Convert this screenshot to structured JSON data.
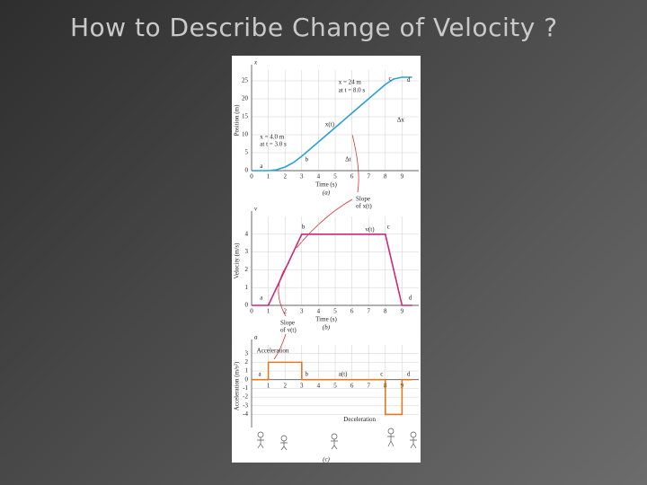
{
  "title": "How to Describe Change of Velocity ?",
  "slope_labels": [
    [
      "Slope",
      "of x(t)"
    ],
    [
      "Slope",
      "of v(t)"
    ]
  ],
  "chart_data": [
    {
      "type": "line",
      "axis_symbol": "x",
      "ylabel": "Position (m)",
      "xlabel": "Time (s)",
      "caption": "(a)",
      "x": [
        0,
        1,
        1.5,
        2,
        2.5,
        3,
        4,
        5,
        6,
        7,
        8,
        8.5,
        9,
        9.6
      ],
      "values": [
        0,
        0,
        0.25,
        1,
        2.25,
        4,
        8,
        12,
        16,
        20,
        24,
        25.5,
        26,
        26
      ],
      "color": "#2a9fd6",
      "xlim": [
        0,
        10
      ],
      "ylim": [
        0,
        28
      ],
      "xticks": [
        0,
        1,
        2,
        3,
        4,
        5,
        6,
        7,
        8,
        9
      ],
      "yticks": [
        0,
        5,
        10,
        15,
        20,
        25
      ],
      "grid": true,
      "annotations": [
        {
          "text": "x = 24 m",
          "x": 5.2,
          "y": 24.5
        },
        {
          "text": "at t = 8.0 s",
          "x": 5.2,
          "y": 22.3
        },
        {
          "text": "x(t)",
          "x": 4.4,
          "y": 12.8
        },
        {
          "text": "x = 4.0 m",
          "x": 0.5,
          "y": 9.3
        },
        {
          "text": "at t = 3.0 s",
          "x": 0.5,
          "y": 7.3
        },
        {
          "text": "Δx",
          "x": 8.7,
          "y": 14
        },
        {
          "text": "Δt",
          "x": 5.6,
          "y": 3
        },
        {
          "text": "a",
          "x": 0.5,
          "y": 1.2
        },
        {
          "text": "b",
          "x": 3.2,
          "y": 3
        },
        {
          "text": "c",
          "x": 8.2,
          "y": 25.5
        },
        {
          "text": "d",
          "x": 9.3,
          "y": 25.2
        }
      ]
    },
    {
      "type": "line",
      "axis_symbol": "v",
      "ylabel": "Velocity (m/s)",
      "xlabel": "Time (s)",
      "caption": "(b)",
      "x": [
        0,
        1,
        3,
        8,
        9,
        9.6
      ],
      "values": [
        0,
        0,
        4,
        4,
        0,
        0
      ],
      "color": "#c8287e",
      "xlim": [
        0,
        10
      ],
      "ylim": [
        0,
        5
      ],
      "xticks": [
        0,
        1,
        2,
        3,
        4,
        5,
        6,
        7,
        8,
        9
      ],
      "yticks": [
        0,
        1,
        2,
        3,
        4
      ],
      "grid": true,
      "annotations": [
        {
          "text": "a",
          "x": 0.5,
          "y": 0.4
        },
        {
          "text": "b",
          "x": 3,
          "y": 4.4
        },
        {
          "text": "c",
          "x": 8.1,
          "y": 4.4
        },
        {
          "text": "d",
          "x": 9.4,
          "y": 0.4
        },
        {
          "text": "v(t)",
          "x": 6.8,
          "y": 4.25
        }
      ]
    },
    {
      "type": "line",
      "axis_symbol": "a",
      "ylabel": "Acceleration (m/s²)",
      "caption": "(c)",
      "x": [
        0,
        1,
        1,
        3,
        3,
        8,
        8,
        9,
        9,
        9.6
      ],
      "values": [
        0,
        0,
        2,
        2,
        0,
        0,
        -4,
        -4,
        0,
        0
      ],
      "color": "#e07a20",
      "xlim": [
        0,
        10
      ],
      "ylim": [
        -5.5,
        4
      ],
      "xticks": [
        1,
        2,
        3,
        4,
        5,
        6,
        7,
        8,
        9
      ],
      "yticks": [
        -4,
        -3,
        -2,
        -1,
        0,
        1,
        2,
        3
      ],
      "grid": true,
      "annotations": [
        {
          "text": "a",
          "x": 0.4,
          "y": 0.6
        },
        {
          "text": "b",
          "x": 3.2,
          "y": 0.6
        },
        {
          "text": "c",
          "x": 7.7,
          "y": 0.6
        },
        {
          "text": "d",
          "x": 9.3,
          "y": 0.6
        },
        {
          "text": "a(t)",
          "x": 5.2,
          "y": 0.6
        },
        {
          "text": "Acceleration",
          "x": 0.3,
          "y": 3.3
        },
        {
          "text": "Deceleration",
          "x": 5.5,
          "y": -4.6
        }
      ]
    }
  ]
}
